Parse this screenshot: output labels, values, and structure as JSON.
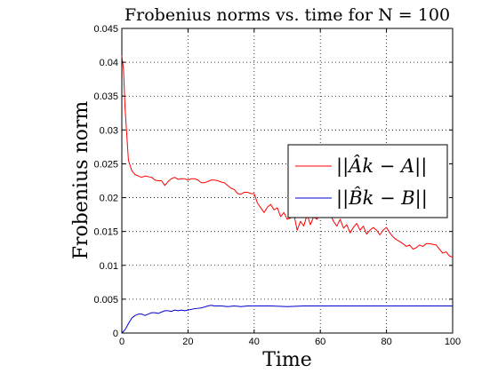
{
  "chart_data": {
    "type": "line",
    "title": "Frobenius norms vs. time for N = 100",
    "xlabel": "Time",
    "ylabel": "Frobenius norm",
    "xlim": [
      0,
      100
    ],
    "ylim": [
      0,
      0.045
    ],
    "x_ticks": [
      "0",
      "20",
      "40",
      "60",
      "80",
      "100"
    ],
    "y_ticks": [
      "0",
      "0.005",
      "0.01",
      "0.015",
      "0.02",
      "0.025",
      "0.03",
      "0.035",
      "0.04",
      "0.045"
    ],
    "x_tick_values": [
      0,
      20,
      40,
      60,
      80,
      100
    ],
    "y_tick_values": [
      0,
      0.005,
      0.01,
      0.015,
      0.02,
      0.025,
      0.03,
      0.035,
      0.04,
      0.045
    ],
    "grid": true,
    "legend_position": "right",
    "series": [
      {
        "name": "||Âk − A||",
        "color": "#ff0000",
        "x": [
          0,
          0.5,
          1,
          2,
          3,
          4,
          5,
          6,
          7,
          8,
          9,
          10,
          11,
          12,
          13,
          14,
          15,
          16,
          17,
          18,
          19,
          20,
          21,
          22,
          23,
          24,
          25,
          26,
          27,
          28,
          29,
          30,
          31,
          32,
          33,
          34,
          35,
          36,
          37,
          38,
          39,
          40,
          41,
          42,
          43,
          44,
          45,
          46,
          47,
          48,
          49,
          50,
          51,
          52,
          53,
          54,
          55,
          56,
          57,
          58,
          59,
          60,
          61,
          62,
          63,
          64,
          65,
          66,
          67,
          68,
          69,
          70,
          71,
          72,
          73,
          74,
          75,
          76,
          77,
          78,
          79,
          80,
          81,
          82,
          83,
          84,
          85,
          86,
          87,
          88,
          89,
          90,
          91,
          92,
          93,
          94,
          95,
          96,
          97,
          98,
          99,
          100
        ],
        "values": [
          0.041,
          0.039,
          0.033,
          0.0255,
          0.024,
          0.0234,
          0.0232,
          0.023,
          0.0232,
          0.0231,
          0.023,
          0.0226,
          0.0225,
          0.0225,
          0.0218,
          0.0224,
          0.0228,
          0.023,
          0.0227,
          0.0228,
          0.0228,
          0.0226,
          0.0228,
          0.0228,
          0.0226,
          0.0222,
          0.0222,
          0.0224,
          0.0226,
          0.0226,
          0.0225,
          0.0223,
          0.0222,
          0.0218,
          0.0214,
          0.0212,
          0.0206,
          0.0205,
          0.0208,
          0.0208,
          0.0206,
          0.0206,
          0.0192,
          0.0185,
          0.0178,
          0.0186,
          0.019,
          0.0182,
          0.0185,
          0.0172,
          0.0178,
          0.0168,
          0.017,
          0.0176,
          0.0152,
          0.0165,
          0.0158,
          0.0175,
          0.016,
          0.0172,
          0.0168,
          0.0178,
          0.0172,
          0.018,
          0.0175,
          0.0165,
          0.0158,
          0.0168,
          0.0155,
          0.016,
          0.0148,
          0.0156,
          0.0162,
          0.0152,
          0.0158,
          0.0146,
          0.0152,
          0.0156,
          0.0152,
          0.0145,
          0.0152,
          0.0156,
          0.0148,
          0.0142,
          0.0138,
          0.0135,
          0.0132,
          0.0128,
          0.013,
          0.0124,
          0.0126,
          0.013,
          0.0128,
          0.0132,
          0.0132,
          0.0131,
          0.013,
          0.0124,
          0.0118,
          0.012,
          0.0114,
          0.0112
        ]
      },
      {
        "name": "||B̂k − B||",
        "color": "#0000cc",
        "x": [
          0,
          1,
          2,
          3,
          4,
          5,
          6,
          7,
          8,
          9,
          10,
          11,
          12,
          13,
          14,
          15,
          16,
          17,
          18,
          19,
          20,
          22,
          24,
          26,
          27,
          28,
          30,
          32,
          34,
          36,
          38,
          40,
          45,
          50,
          55,
          60,
          70,
          80,
          90,
          100
        ],
        "values": [
          0.0,
          0.0005,
          0.0014,
          0.0022,
          0.0026,
          0.0028,
          0.0028,
          0.0026,
          0.0028,
          0.003,
          0.003,
          0.0029,
          0.0031,
          0.0033,
          0.0033,
          0.0032,
          0.0034,
          0.0033,
          0.0034,
          0.0033,
          0.0034,
          0.0036,
          0.0037,
          0.004,
          0.0041,
          0.004,
          0.004,
          0.0039,
          0.004,
          0.0039,
          0.004,
          0.004,
          0.004,
          0.0039,
          0.004,
          0.004,
          0.004,
          0.004,
          0.004,
          0.004
        ]
      }
    ]
  }
}
